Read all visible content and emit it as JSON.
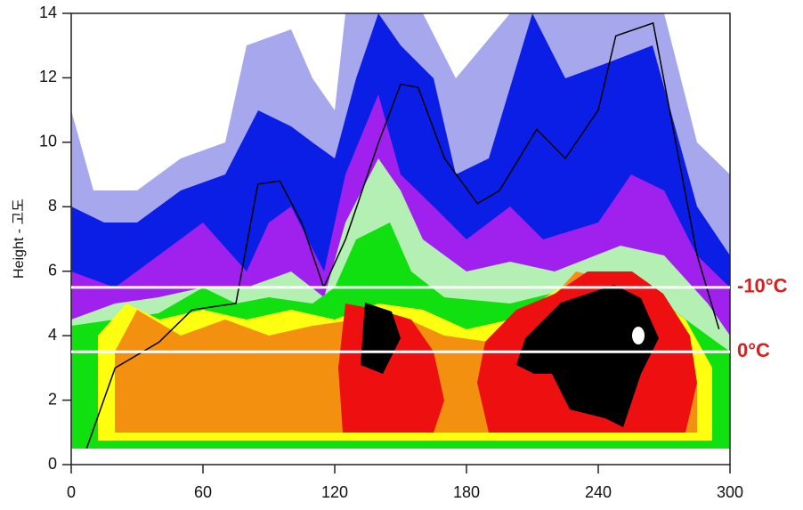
{
  "chart_data": {
    "type": "contour",
    "ylabel": "Height - 고도",
    "xlim": [
      0,
      300
    ],
    "xticks": [
      0,
      60,
      120,
      180,
      240,
      300
    ],
    "ylim": [
      0,
      14
    ],
    "yticks": [
      0,
      2,
      4,
      6,
      8,
      10,
      12,
      14
    ],
    "line": {
      "color": "#000000",
      "x": [
        7,
        20,
        40,
        55,
        65,
        75,
        85,
        95,
        105,
        115,
        125,
        140,
        150,
        158,
        170,
        185,
        195,
        212,
        225,
        240,
        248,
        265,
        285,
        295
      ],
      "values": [
        0.5,
        3,
        3.8,
        4.8,
        4.9,
        5,
        8.7,
        8.8,
        7.5,
        5.5,
        7,
        10,
        11.8,
        11.7,
        9.5,
        8.1,
        8.5,
        10.4,
        9.5,
        11,
        13.3,
        13.7,
        6.5,
        4.2
      ]
    },
    "annotations": [
      {
        "label": "-10°C",
        "value": 5.5,
        "color": "#d62020",
        "line_color": "#ffffff"
      },
      {
        "label": "0°C",
        "value": 3.5,
        "color": "#d62020",
        "line_color": "#ffffff"
      }
    ]
  }
}
